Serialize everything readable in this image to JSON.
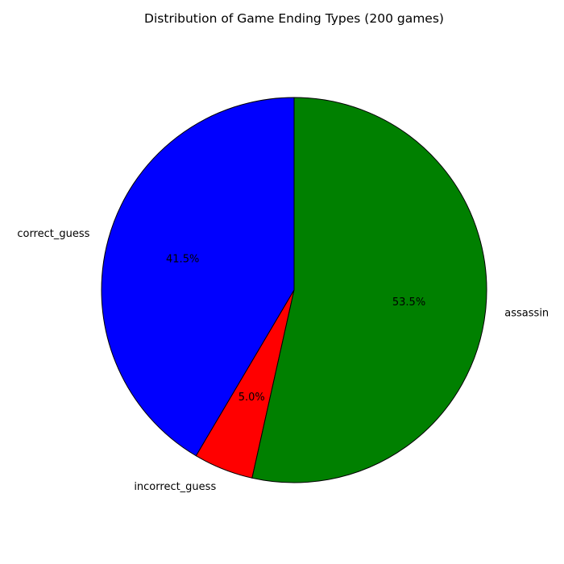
{
  "chart_data": {
    "type": "pie",
    "title": "Distribution of Game Ending Types (200 games)",
    "start_angle_deg": 90,
    "direction": "counterclockwise",
    "slices": [
      {
        "label": "correct_guess",
        "value": 41.5,
        "pct_label": "41.5%",
        "color": "#0000ff"
      },
      {
        "label": "incorrect_guess",
        "value": 5.0,
        "pct_label": "5.0%",
        "color": "#ff0000"
      },
      {
        "label": "assassin",
        "value": 53.5,
        "pct_label": "53.5%",
        "color": "#008000"
      }
    ],
    "edge_color": "#000000"
  }
}
